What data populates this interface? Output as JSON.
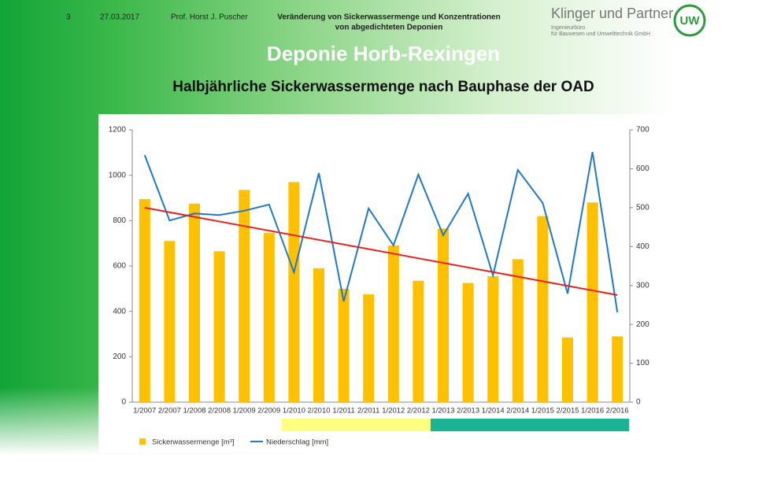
{
  "header": {
    "slide_number": "3",
    "date": "27.03.2017",
    "author": "Prof. Horst J. Puscher",
    "topic": [
      "Veränderung von Sickerwassermenge und Konzentrationen",
      "von abgedichteten Deponien"
    ],
    "company": "Klinger und Partner",
    "company_sub": [
      "Ingenieurbüro",
      "für Bauwesen und Umwelttechnik GmbH"
    ],
    "logo": "UW"
  },
  "chart_data": {
    "type": "bar",
    "title": "Deponie Horb-Rexingen",
    "subtitle": "Halbjährliche Sickerwassermenge nach Bauphase der OAD",
    "categories": [
      "1/2007",
      "2/2007",
      "1/2008",
      "2/2008",
      "1/2009",
      "2/2009",
      "1/2010",
      "2/2010",
      "1/2011",
      "2/2011",
      "1/2012",
      "2/2012",
      "1/2013",
      "2/2013",
      "1/2014",
      "2/2014",
      "1/2015",
      "2/2015",
      "1/2016",
      "2/2016"
    ],
    "series": [
      {
        "name": "Sickerwassermenge [m³]",
        "type": "bar",
        "color": "#ffc000",
        "values": [
          895,
          710,
          875,
          665,
          935,
          745,
          970,
          590,
          500,
          475,
          690,
          535,
          765,
          525,
          555,
          630,
          820,
          285,
          880,
          290
        ]
      },
      {
        "name": "Niederschlag [mm]",
        "type": "line",
        "axis": "y2",
        "color": "#1f78c8",
        "values": [
          635,
          467,
          485,
          481,
          492,
          508,
          334,
          589,
          259,
          498,
          403,
          585,
          429,
          536,
          326,
          597,
          512,
          279,
          643,
          231
        ]
      }
    ],
    "trendline": {
      "color": "#e8221a",
      "values": [
        857,
        472
      ]
    },
    "ylim": [
      0,
      1200
    ],
    "yticks": [
      0,
      200,
      400,
      600,
      800,
      1000,
      1200
    ],
    "y2lim": [
      0,
      700
    ],
    "y2ticks": [
      0,
      100,
      200,
      300,
      400,
      500,
      600,
      700
    ],
    "grid": false,
    "legend": "bottom"
  }
}
